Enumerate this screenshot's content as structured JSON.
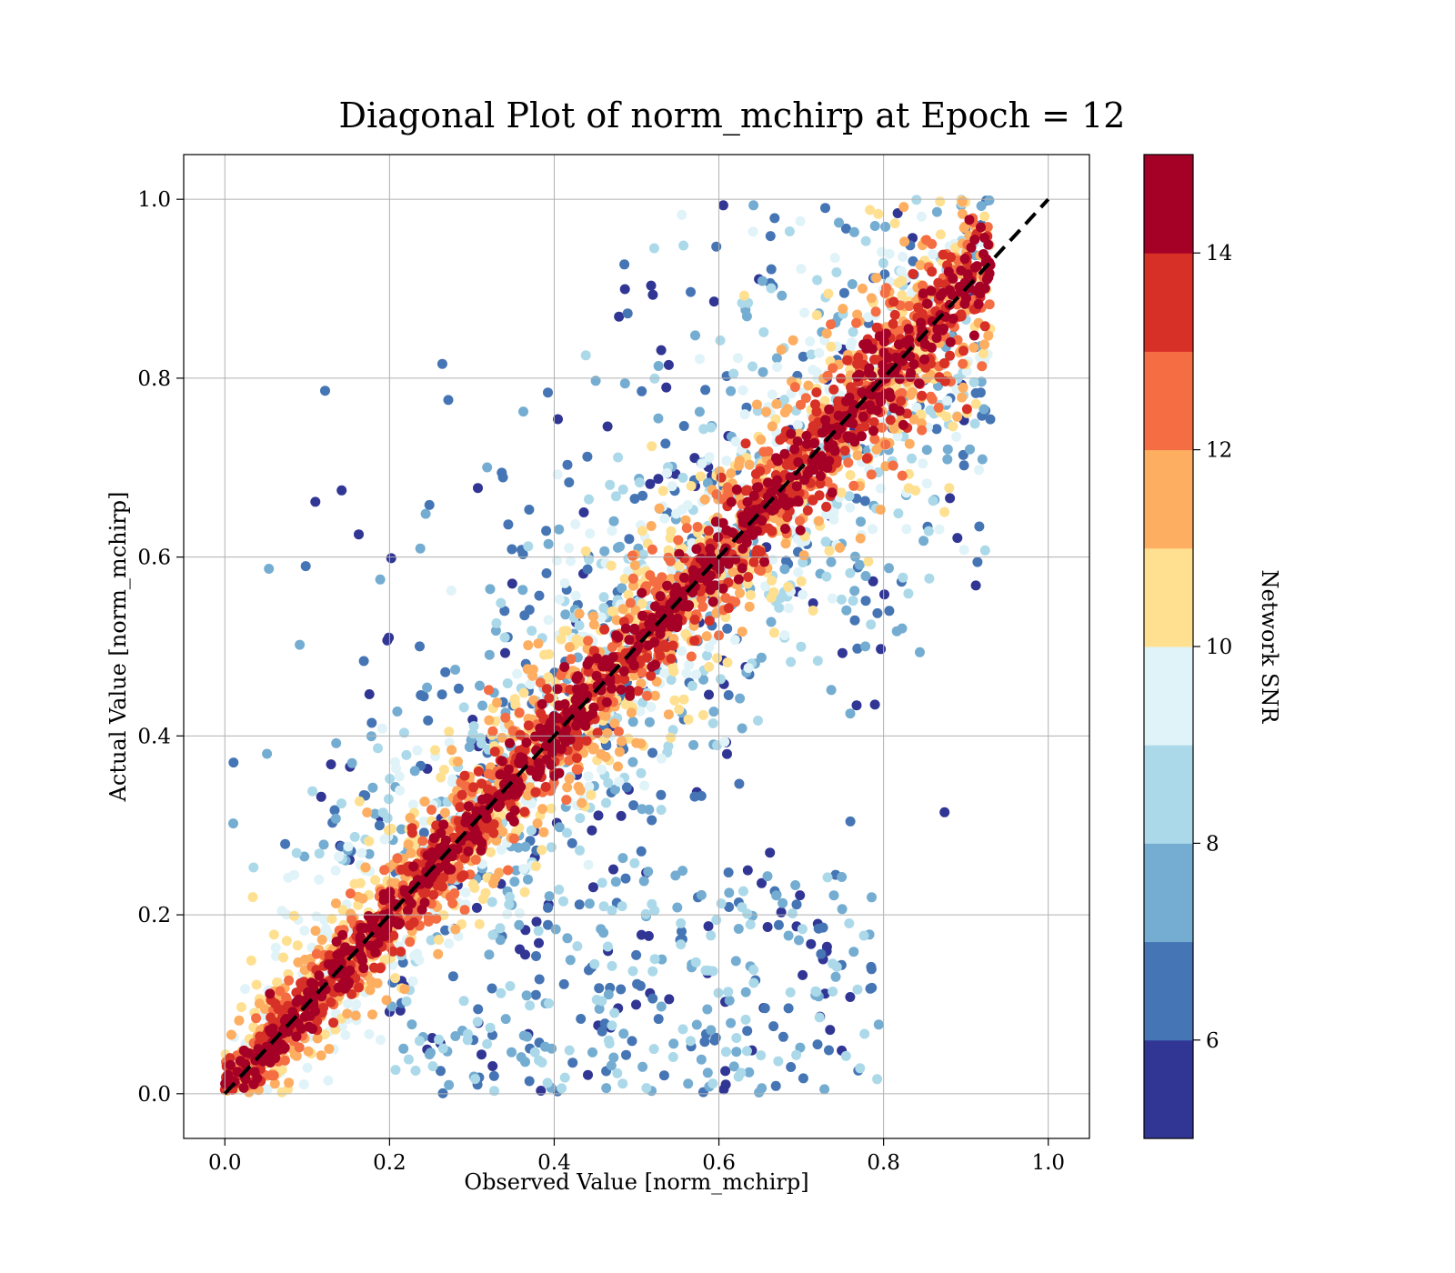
{
  "chart_data": {
    "type": "scatter",
    "title": "Diagonal Plot of norm_mchirp at Epoch = 12",
    "xlabel": "Observed Value [norm_mchirp]",
    "ylabel": "Actual Value [norm_mchirp]",
    "xlim": [
      -0.05,
      1.05
    ],
    "ylim": [
      -0.05,
      1.05
    ],
    "xticks": [
      "0.0",
      "0.2",
      "0.4",
      "0.6",
      "0.8",
      "1.0"
    ],
    "yticks": [
      "0.0",
      "0.2",
      "0.4",
      "0.6",
      "0.8",
      "1.0"
    ],
    "grid": true,
    "reference_line": {
      "style": "dashed",
      "color": "#000000",
      "from": [
        0,
        0
      ],
      "to": [
        1,
        1
      ]
    },
    "observed_range": [
      0.0,
      0.93
    ],
    "actual_range": [
      0.0,
      1.0
    ],
    "colorbar": {
      "label": "Network SNR",
      "range": [
        5,
        15
      ],
      "ticks": [
        "6",
        "8",
        "10",
        "12",
        "14"
      ],
      "bins": [
        {
          "from": 5,
          "to": 6,
          "color": "#313695"
        },
        {
          "from": 6,
          "to": 7,
          "color": "#4575b4"
        },
        {
          "from": 7,
          "to": 8,
          "color": "#74add1"
        },
        {
          "from": 8,
          "to": 9,
          "color": "#abd9e9"
        },
        {
          "from": 9,
          "to": 10,
          "color": "#e0f3f8"
        },
        {
          "from": 10,
          "to": 11,
          "color": "#fee090"
        },
        {
          "from": 11,
          "to": 12,
          "color": "#fdae61"
        },
        {
          "from": 12,
          "to": 13,
          "color": "#f46d43"
        },
        {
          "from": 13,
          "to": 14,
          "color": "#d73027"
        },
        {
          "from": 14,
          "to": 15,
          "color": "#a50026"
        }
      ]
    }
  }
}
